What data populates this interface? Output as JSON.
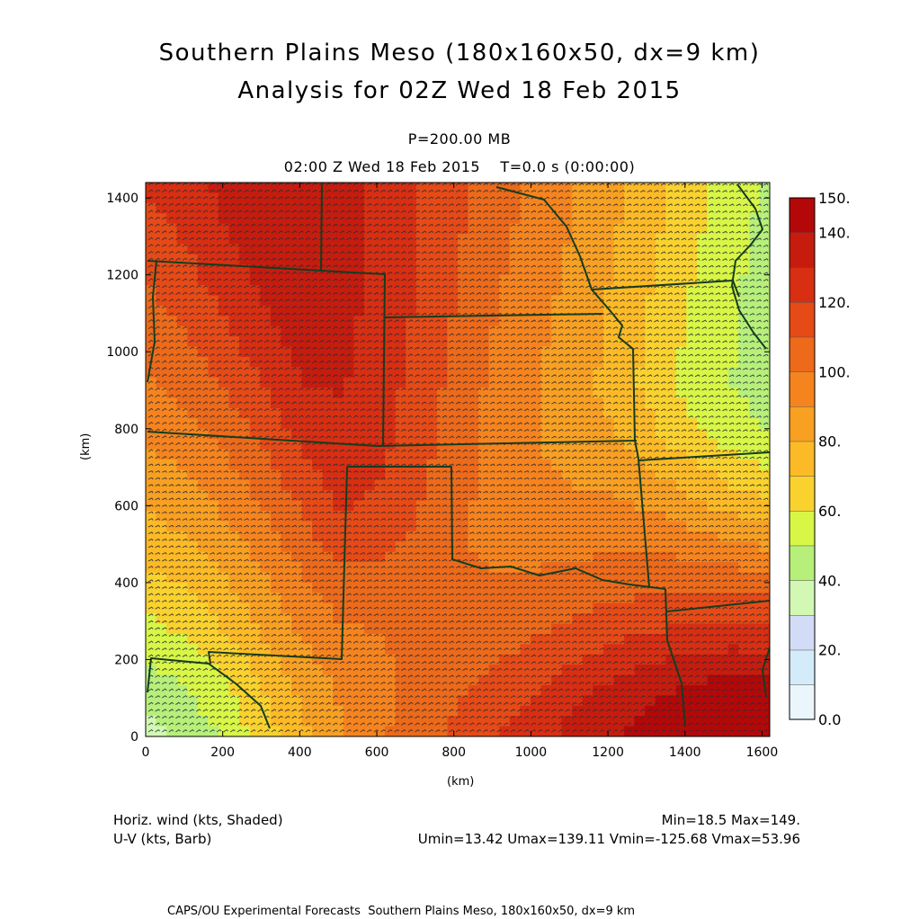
{
  "header": {
    "title_line1": "Southern Plains Meso (180x160x50, dx=9 km)",
    "title_line2": "Analysis for 02Z Wed 18 Feb 2015",
    "level": "P=200.00 MB",
    "time": "02:00 Z Wed 18 Feb 2015    T=0.0 s (0:00:00)"
  },
  "footer": {
    "field_label": "Horiz. wind (kts, Shaded)",
    "barb_label": "U-V (kts, Barb)",
    "minmax": "Min=18.5 Max=149.",
    "uv_stats": "Umin=13.42 Umax=139.11 Vmin=-125.68 Vmax=53.96",
    "credit": "CAPS/OU Experimental Forecasts  Southern Plains Meso, 180x160x50, dx=9 km"
  },
  "colors": {
    "scale": [
      "#eaf6fc",
      "#d4ecfa",
      "#d2dcf6",
      "#d2f8b4",
      "#b6f07a",
      "#d8f646",
      "#fad22e",
      "#fcba26",
      "#f8a022",
      "#f6841e",
      "#ec6a1a",
      "#e64a16",
      "#d82e12",
      "#c61c0e",
      "#b40808"
    ],
    "map_lines": "#163c1e",
    "barbs": "#2d2d3a"
  },
  "chart_data": {
    "type": "heatmap",
    "variable": "Horizontal wind speed at 200 mb",
    "units": "kts",
    "xlabel": "(km)",
    "ylabel": "(km)",
    "xlim": [
      0,
      1620
    ],
    "ylim": [
      0,
      1440
    ],
    "x_ticks": [
      0,
      200,
      400,
      600,
      800,
      1000,
      1200,
      1400,
      1600
    ],
    "y_ticks": [
      0,
      200,
      400,
      600,
      800,
      1000,
      1200,
      1400
    ],
    "colorbar_ticks": [
      "150.",
      "140.",
      "120.",
      "100.",
      "80.",
      "60.",
      "40.",
      "20.",
      "0.0"
    ],
    "colorbar_levels": [
      0,
      10,
      20,
      30,
      40,
      50,
      60,
      70,
      80,
      90,
      100,
      110,
      120,
      130,
      140,
      150
    ],
    "min": 18.5,
    "max": 149,
    "umin": 13.42,
    "umax": 139.11,
    "vmin": -125.68,
    "vmax": 53.96,
    "speed_grid_rows_north_to_south": [
      [
        122,
        126,
        133,
        138,
        138,
        134,
        128,
        120,
        112,
        104,
        97,
        90,
        82,
        74,
        64,
        56,
        48
      ],
      [
        116,
        121,
        129,
        135,
        137,
        134,
        128,
        120,
        111,
        103,
        96,
        89,
        81,
        72,
        62,
        54,
        46
      ],
      [
        110,
        116,
        124,
        132,
        136,
        134,
        127,
        119,
        110,
        101,
        94,
        87,
        79,
        70,
        60,
        52,
        45
      ],
      [
        104,
        110,
        118,
        127,
        134,
        133,
        126,
        118,
        108,
        99,
        92,
        86,
        78,
        68,
        58,
        51,
        44
      ],
      [
        98,
        103,
        111,
        120,
        130,
        131,
        125,
        116,
        106,
        97,
        90,
        84,
        76,
        66,
        56,
        50,
        44
      ],
      [
        91,
        96,
        103,
        112,
        123,
        128,
        123,
        114,
        104,
        96,
        90,
        86,
        80,
        72,
        62,
        56,
        50
      ],
      [
        84,
        88,
        95,
        104,
        115,
        124,
        120,
        112,
        103,
        96,
        92,
        90,
        88,
        84,
        76,
        70,
        64
      ],
      [
        76,
        80,
        87,
        96,
        106,
        117,
        115,
        108,
        101,
        97,
        96,
        96,
        97,
        96,
        92,
        88,
        84
      ],
      [
        66,
        70,
        78,
        88,
        98,
        106,
        106,
        103,
        101,
        101,
        102,
        104,
        106,
        108,
        108,
        108,
        106
      ],
      [
        56,
        60,
        69,
        80,
        91,
        98,
        100,
        101,
        103,
        106,
        110,
        114,
        118,
        121,
        124,
        125,
        124
      ],
      [
        46,
        50,
        58,
        70,
        82,
        92,
        98,
        103,
        108,
        113,
        119,
        126,
        132,
        137,
        141,
        144,
        145
      ],
      [
        36,
        42,
        52,
        64,
        78,
        89,
        98,
        106,
        113,
        120,
        127,
        134,
        140,
        145,
        148,
        149,
        149
      ]
    ]
  }
}
